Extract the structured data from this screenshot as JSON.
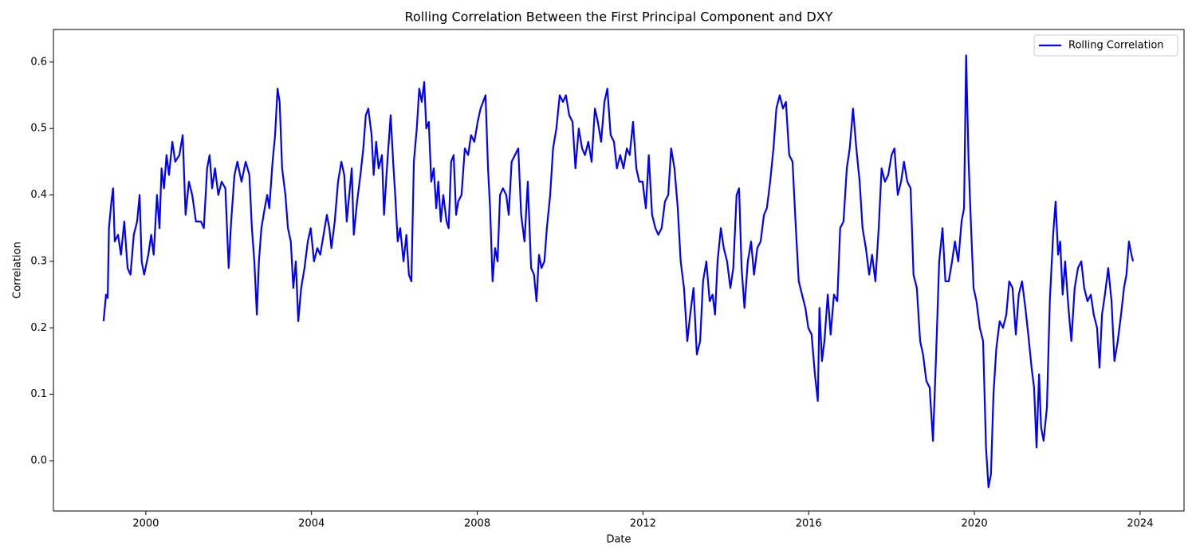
{
  "chart_data": {
    "type": "line",
    "title": "Rolling Correlation Between the First Principal Component and DXY",
    "xlabel": "Date",
    "ylabel": "Correlation",
    "x": [
      1998.98,
      1999.04,
      1999.08,
      1999.11,
      1999.17,
      1999.21,
      1999.25,
      1999.33,
      1999.4,
      1999.48,
      1999.56,
      1999.63,
      1999.71,
      1999.79,
      1999.85,
      1999.9,
      1999.96,
      2000.06,
      2000.13,
      2000.19,
      2000.27,
      2000.33,
      2000.38,
      2000.44,
      2000.5,
      2000.56,
      2000.64,
      2000.71,
      2000.81,
      2000.89,
      2000.96,
      2001.04,
      2001.12,
      2001.21,
      2001.33,
      2001.4,
      2001.48,
      2001.54,
      2001.6,
      2001.67,
      2001.75,
      2001.83,
      2001.92,
      2002.0,
      2002.06,
      2002.14,
      2002.21,
      2002.31,
      2002.41,
      2002.5,
      2002.56,
      2002.62,
      2002.68,
      2002.73,
      2002.79,
      2002.87,
      2002.93,
      2002.98,
      2003.06,
      2003.12,
      2003.18,
      2003.23,
      2003.29,
      2003.37,
      2003.43,
      2003.5,
      2003.56,
      2003.62,
      2003.68,
      2003.75,
      2003.83,
      2003.91,
      2003.98,
      2004.06,
      2004.14,
      2004.21,
      2004.29,
      2004.37,
      2004.43,
      2004.48,
      2004.56,
      2004.64,
      2004.72,
      2004.79,
      2004.85,
      2004.91,
      2004.97,
      2005.02,
      2005.1,
      2005.18,
      2005.25,
      2005.31,
      2005.37,
      2005.45,
      2005.5,
      2005.56,
      2005.62,
      2005.7,
      2005.75,
      2005.83,
      2005.91,
      2005.97,
      2006.02,
      2006.08,
      2006.14,
      2006.22,
      2006.29,
      2006.35,
      2006.41,
      2006.47,
      2006.54,
      2006.6,
      2006.66,
      2006.72,
      2006.77,
      2006.83,
      2006.89,
      2006.95,
      2007.01,
      2007.06,
      2007.12,
      2007.18,
      2007.26,
      2007.31,
      2007.37,
      2007.43,
      2007.49,
      2007.54,
      2007.62,
      2007.7,
      2007.78,
      2007.85,
      2007.93,
      2008.01,
      2008.08,
      2008.14,
      2008.2,
      2008.26,
      2008.31,
      2008.37,
      2008.43,
      2008.49,
      2008.55,
      2008.62,
      2008.7,
      2008.76,
      2008.83,
      2008.91,
      2008.99,
      2009.06,
      2009.14,
      2009.22,
      2009.3,
      2009.37,
      2009.43,
      2009.49,
      2009.55,
      2009.62,
      2009.68,
      2009.76,
      2009.83,
      2009.91,
      2009.99,
      2010.07,
      2010.14,
      2010.22,
      2010.3,
      2010.37,
      2010.45,
      2010.53,
      2010.6,
      2010.68,
      2010.76,
      2010.84,
      2010.91,
      2010.99,
      2011.07,
      2011.14,
      2011.22,
      2011.3,
      2011.37,
      2011.45,
      2011.53,
      2011.61,
      2011.68,
      2011.76,
      2011.84,
      2011.91,
      2011.99,
      2012.07,
      2012.14,
      2012.22,
      2012.3,
      2012.37,
      2012.45,
      2012.53,
      2012.61,
      2012.68,
      2012.76,
      2012.84,
      2012.91,
      2012.99,
      2013.07,
      2013.14,
      2013.22,
      2013.3,
      2013.38,
      2013.45,
      2013.53,
      2013.61,
      2013.68,
      2013.74,
      2013.8,
      2013.88,
      2013.95,
      2014.03,
      2014.11,
      2014.18,
      2014.26,
      2014.32,
      2014.38,
      2014.45,
      2014.53,
      2014.61,
      2014.68,
      2014.76,
      2014.84,
      2014.92,
      2014.99,
      2015.07,
      2015.15,
      2015.22,
      2015.3,
      2015.38,
      2015.45,
      2015.53,
      2015.61,
      2015.69,
      2015.76,
      2015.84,
      2015.92,
      2015.99,
      2016.07,
      2016.15,
      2016.22,
      2016.26,
      2016.32,
      2016.38,
      2016.46,
      2016.53,
      2016.61,
      2016.69,
      2016.76,
      2016.84,
      2016.92,
      2016.99,
      2017.07,
      2017.15,
      2017.23,
      2017.3,
      2017.38,
      2017.46,
      2017.53,
      2017.61,
      2017.69,
      2017.76,
      2017.84,
      2017.92,
      2018.0,
      2018.07,
      2018.15,
      2018.23,
      2018.3,
      2018.38,
      2018.46,
      2018.53,
      2018.61,
      2018.69,
      2018.76,
      2018.84,
      2018.92,
      2019.0,
      2019.07,
      2019.15,
      2019.23,
      2019.3,
      2019.38,
      2019.46,
      2019.53,
      2019.61,
      2019.69,
      2019.75,
      2019.8,
      2019.86,
      2019.92,
      2019.98,
      2020.05,
      2020.13,
      2020.21,
      2020.28,
      2020.34,
      2020.4,
      2020.46,
      2020.53,
      2020.61,
      2020.69,
      2020.77,
      2020.84,
      2020.92,
      2021.0,
      2021.07,
      2021.15,
      2021.23,
      2021.3,
      2021.38,
      2021.44,
      2021.5,
      2021.56,
      2021.61,
      2021.67,
      2021.75,
      2021.82,
      2021.9,
      2021.96,
      2022.02,
      2022.07,
      2022.13,
      2022.19,
      2022.27,
      2022.34,
      2022.42,
      2022.5,
      2022.58,
      2022.65,
      2022.73,
      2022.81,
      2022.88,
      2022.96,
      2023.02,
      2023.08,
      2023.15,
      2023.23,
      2023.31,
      2023.38,
      2023.46,
      2023.54,
      2023.61,
      2023.67,
      2023.73,
      2023.79,
      2023.83
    ],
    "series": [
      {
        "name": "Rolling Correlation",
        "color": "#0000ff",
        "values": [
          0.21,
          0.25,
          0.245,
          0.35,
          0.39,
          0.41,
          0.33,
          0.34,
          0.31,
          0.36,
          0.29,
          0.28,
          0.34,
          0.36,
          0.4,
          0.3,
          0.28,
          0.31,
          0.34,
          0.31,
          0.4,
          0.35,
          0.44,
          0.41,
          0.46,
          0.43,
          0.48,
          0.45,
          0.46,
          0.49,
          0.37,
          0.42,
          0.4,
          0.36,
          0.36,
          0.35,
          0.44,
          0.46,
          0.41,
          0.44,
          0.4,
          0.42,
          0.41,
          0.29,
          0.36,
          0.43,
          0.45,
          0.42,
          0.45,
          0.43,
          0.35,
          0.3,
          0.22,
          0.3,
          0.35,
          0.38,
          0.4,
          0.38,
          0.45,
          0.49,
          0.56,
          0.54,
          0.44,
          0.4,
          0.35,
          0.33,
          0.26,
          0.3,
          0.21,
          0.26,
          0.29,
          0.33,
          0.35,
          0.3,
          0.32,
          0.31,
          0.34,
          0.37,
          0.35,
          0.32,
          0.36,
          0.42,
          0.45,
          0.43,
          0.36,
          0.4,
          0.44,
          0.34,
          0.39,
          0.43,
          0.47,
          0.52,
          0.53,
          0.49,
          0.43,
          0.48,
          0.44,
          0.46,
          0.37,
          0.45,
          0.52,
          0.45,
          0.4,
          0.33,
          0.35,
          0.3,
          0.34,
          0.28,
          0.27,
          0.45,
          0.5,
          0.56,
          0.54,
          0.57,
          0.5,
          0.51,
          0.42,
          0.44,
          0.38,
          0.42,
          0.36,
          0.4,
          0.36,
          0.35,
          0.45,
          0.46,
          0.37,
          0.39,
          0.4,
          0.47,
          0.46,
          0.49,
          0.48,
          0.51,
          0.53,
          0.54,
          0.55,
          0.44,
          0.38,
          0.27,
          0.32,
          0.3,
          0.4,
          0.41,
          0.4,
          0.37,
          0.45,
          0.46,
          0.47,
          0.37,
          0.33,
          0.42,
          0.29,
          0.28,
          0.24,
          0.31,
          0.29,
          0.3,
          0.35,
          0.4,
          0.47,
          0.5,
          0.55,
          0.54,
          0.55,
          0.52,
          0.51,
          0.44,
          0.5,
          0.47,
          0.46,
          0.48,
          0.45,
          0.53,
          0.51,
          0.48,
          0.54,
          0.56,
          0.49,
          0.48,
          0.44,
          0.46,
          0.44,
          0.47,
          0.46,
          0.51,
          0.44,
          0.42,
          0.42,
          0.38,
          0.46,
          0.37,
          0.35,
          0.34,
          0.35,
          0.39,
          0.4,
          0.47,
          0.44,
          0.38,
          0.3,
          0.26,
          0.18,
          0.22,
          0.26,
          0.16,
          0.18,
          0.27,
          0.3,
          0.24,
          0.25,
          0.22,
          0.3,
          0.35,
          0.32,
          0.3,
          0.26,
          0.29,
          0.4,
          0.41,
          0.29,
          0.23,
          0.3,
          0.33,
          0.28,
          0.32,
          0.33,
          0.37,
          0.38,
          0.42,
          0.47,
          0.53,
          0.55,
          0.53,
          0.54,
          0.46,
          0.45,
          0.35,
          0.27,
          0.25,
          0.23,
          0.2,
          0.19,
          0.13,
          0.09,
          0.23,
          0.15,
          0.18,
          0.25,
          0.19,
          0.25,
          0.24,
          0.35,
          0.36,
          0.44,
          0.47,
          0.53,
          0.47,
          0.42,
          0.35,
          0.32,
          0.28,
          0.31,
          0.27,
          0.35,
          0.44,
          0.42,
          0.43,
          0.46,
          0.47,
          0.4,
          0.42,
          0.45,
          0.42,
          0.41,
          0.28,
          0.26,
          0.18,
          0.16,
          0.12,
          0.11,
          0.03,
          0.15,
          0.3,
          0.35,
          0.27,
          0.27,
          0.3,
          0.33,
          0.3,
          0.36,
          0.38,
          0.61,
          0.45,
          0.35,
          0.26,
          0.24,
          0.2,
          0.18,
          0.02,
          -0.04,
          -0.02,
          0.1,
          0.17,
          0.21,
          0.2,
          0.22,
          0.27,
          0.26,
          0.19,
          0.25,
          0.27,
          0.23,
          0.19,
          0.14,
          0.11,
          0.02,
          0.13,
          0.05,
          0.03,
          0.08,
          0.24,
          0.34,
          0.39,
          0.31,
          0.33,
          0.25,
          0.3,
          0.23,
          0.18,
          0.26,
          0.29,
          0.3,
          0.26,
          0.24,
          0.25,
          0.22,
          0.2,
          0.14,
          0.22,
          0.25,
          0.29,
          0.24,
          0.15,
          0.18,
          0.22,
          0.26,
          0.28,
          0.33,
          0.31,
          0.3
        ]
      }
    ],
    "xlim": [
      1997.77,
      2025.06
    ],
    "ylim": [
      -0.0756,
      0.649
    ],
    "xticks": [
      2000,
      2004,
      2008,
      2012,
      2016,
      2020,
      2024
    ],
    "yticks": [
      {
        "value": 0,
        "label": "0.0"
      },
      0.1,
      0.2,
      0.3,
      0.4,
      0.5,
      0.6
    ],
    "grid": false,
    "legend": "upper right"
  }
}
